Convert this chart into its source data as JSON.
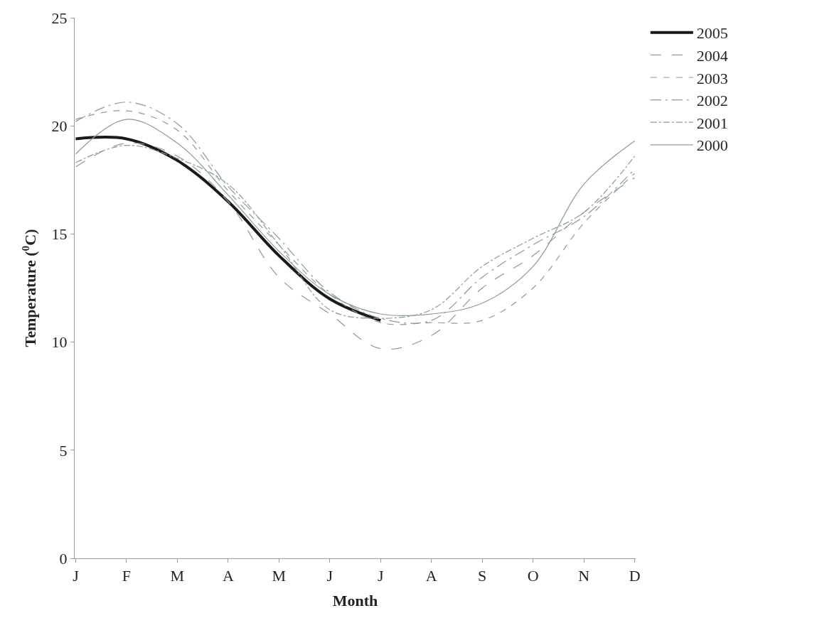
{
  "chart_data": {
    "type": "line",
    "xlabel": "Month",
    "ylabel": "Temperature ($^{0}$C)",
    "categories": [
      "J",
      "F",
      "M",
      "A",
      "M",
      "J",
      "J",
      "A",
      "S",
      "O",
      "N",
      "D"
    ],
    "ylim": [
      0,
      25
    ],
    "yticks": [
      0,
      5,
      10,
      15,
      20,
      25
    ],
    "legend": "top right",
    "marker": "none",
    "series": [
      {
        "name": "2005",
        "color": "#1a1a1a",
        "line_style": "solid",
        "values": [
          19.4,
          19.4,
          18.4,
          16.5,
          14.0,
          12.0,
          11.0,
          null,
          null,
          null,
          null,
          null
        ]
      },
      {
        "name": "2004",
        "color": "#8a9a9a",
        "line_style": "longdash",
        "values": [
          18.1,
          19.2,
          18.6,
          16.5,
          13.0,
          11.3,
          9.7,
          10.3,
          12.5,
          14.0,
          16.0,
          17.6
        ]
      },
      {
        "name": "2003",
        "color": "#8a9a9a",
        "line_style": "dashed",
        "values": [
          20.3,
          20.7,
          19.8,
          17.0,
          14.5,
          12.2,
          10.9,
          10.9,
          11.0,
          12.5,
          15.5,
          17.8
        ]
      },
      {
        "name": "2002",
        "color": "#8a9a9a",
        "line_style": "longdashdot",
        "values": [
          20.2,
          21.1,
          20.1,
          17.2,
          14.8,
          12.3,
          11.1,
          11.0,
          13.0,
          14.5,
          15.8,
          18.0
        ]
      },
      {
        "name": "2001",
        "color": "#8a9a9a",
        "line_style": "dashdot",
        "values": [
          18.3,
          19.1,
          18.5,
          17.3,
          14.5,
          11.5,
          11.1,
          11.5,
          13.5,
          14.8,
          16.0,
          18.6
        ]
      },
      {
        "name": "2000",
        "color": "#8a9a9a",
        "line_style": "solid",
        "values": [
          18.7,
          20.3,
          19.2,
          16.8,
          14.2,
          12.2,
          11.3,
          11.3,
          11.8,
          13.5,
          17.3,
          19.3
        ]
      }
    ]
  }
}
